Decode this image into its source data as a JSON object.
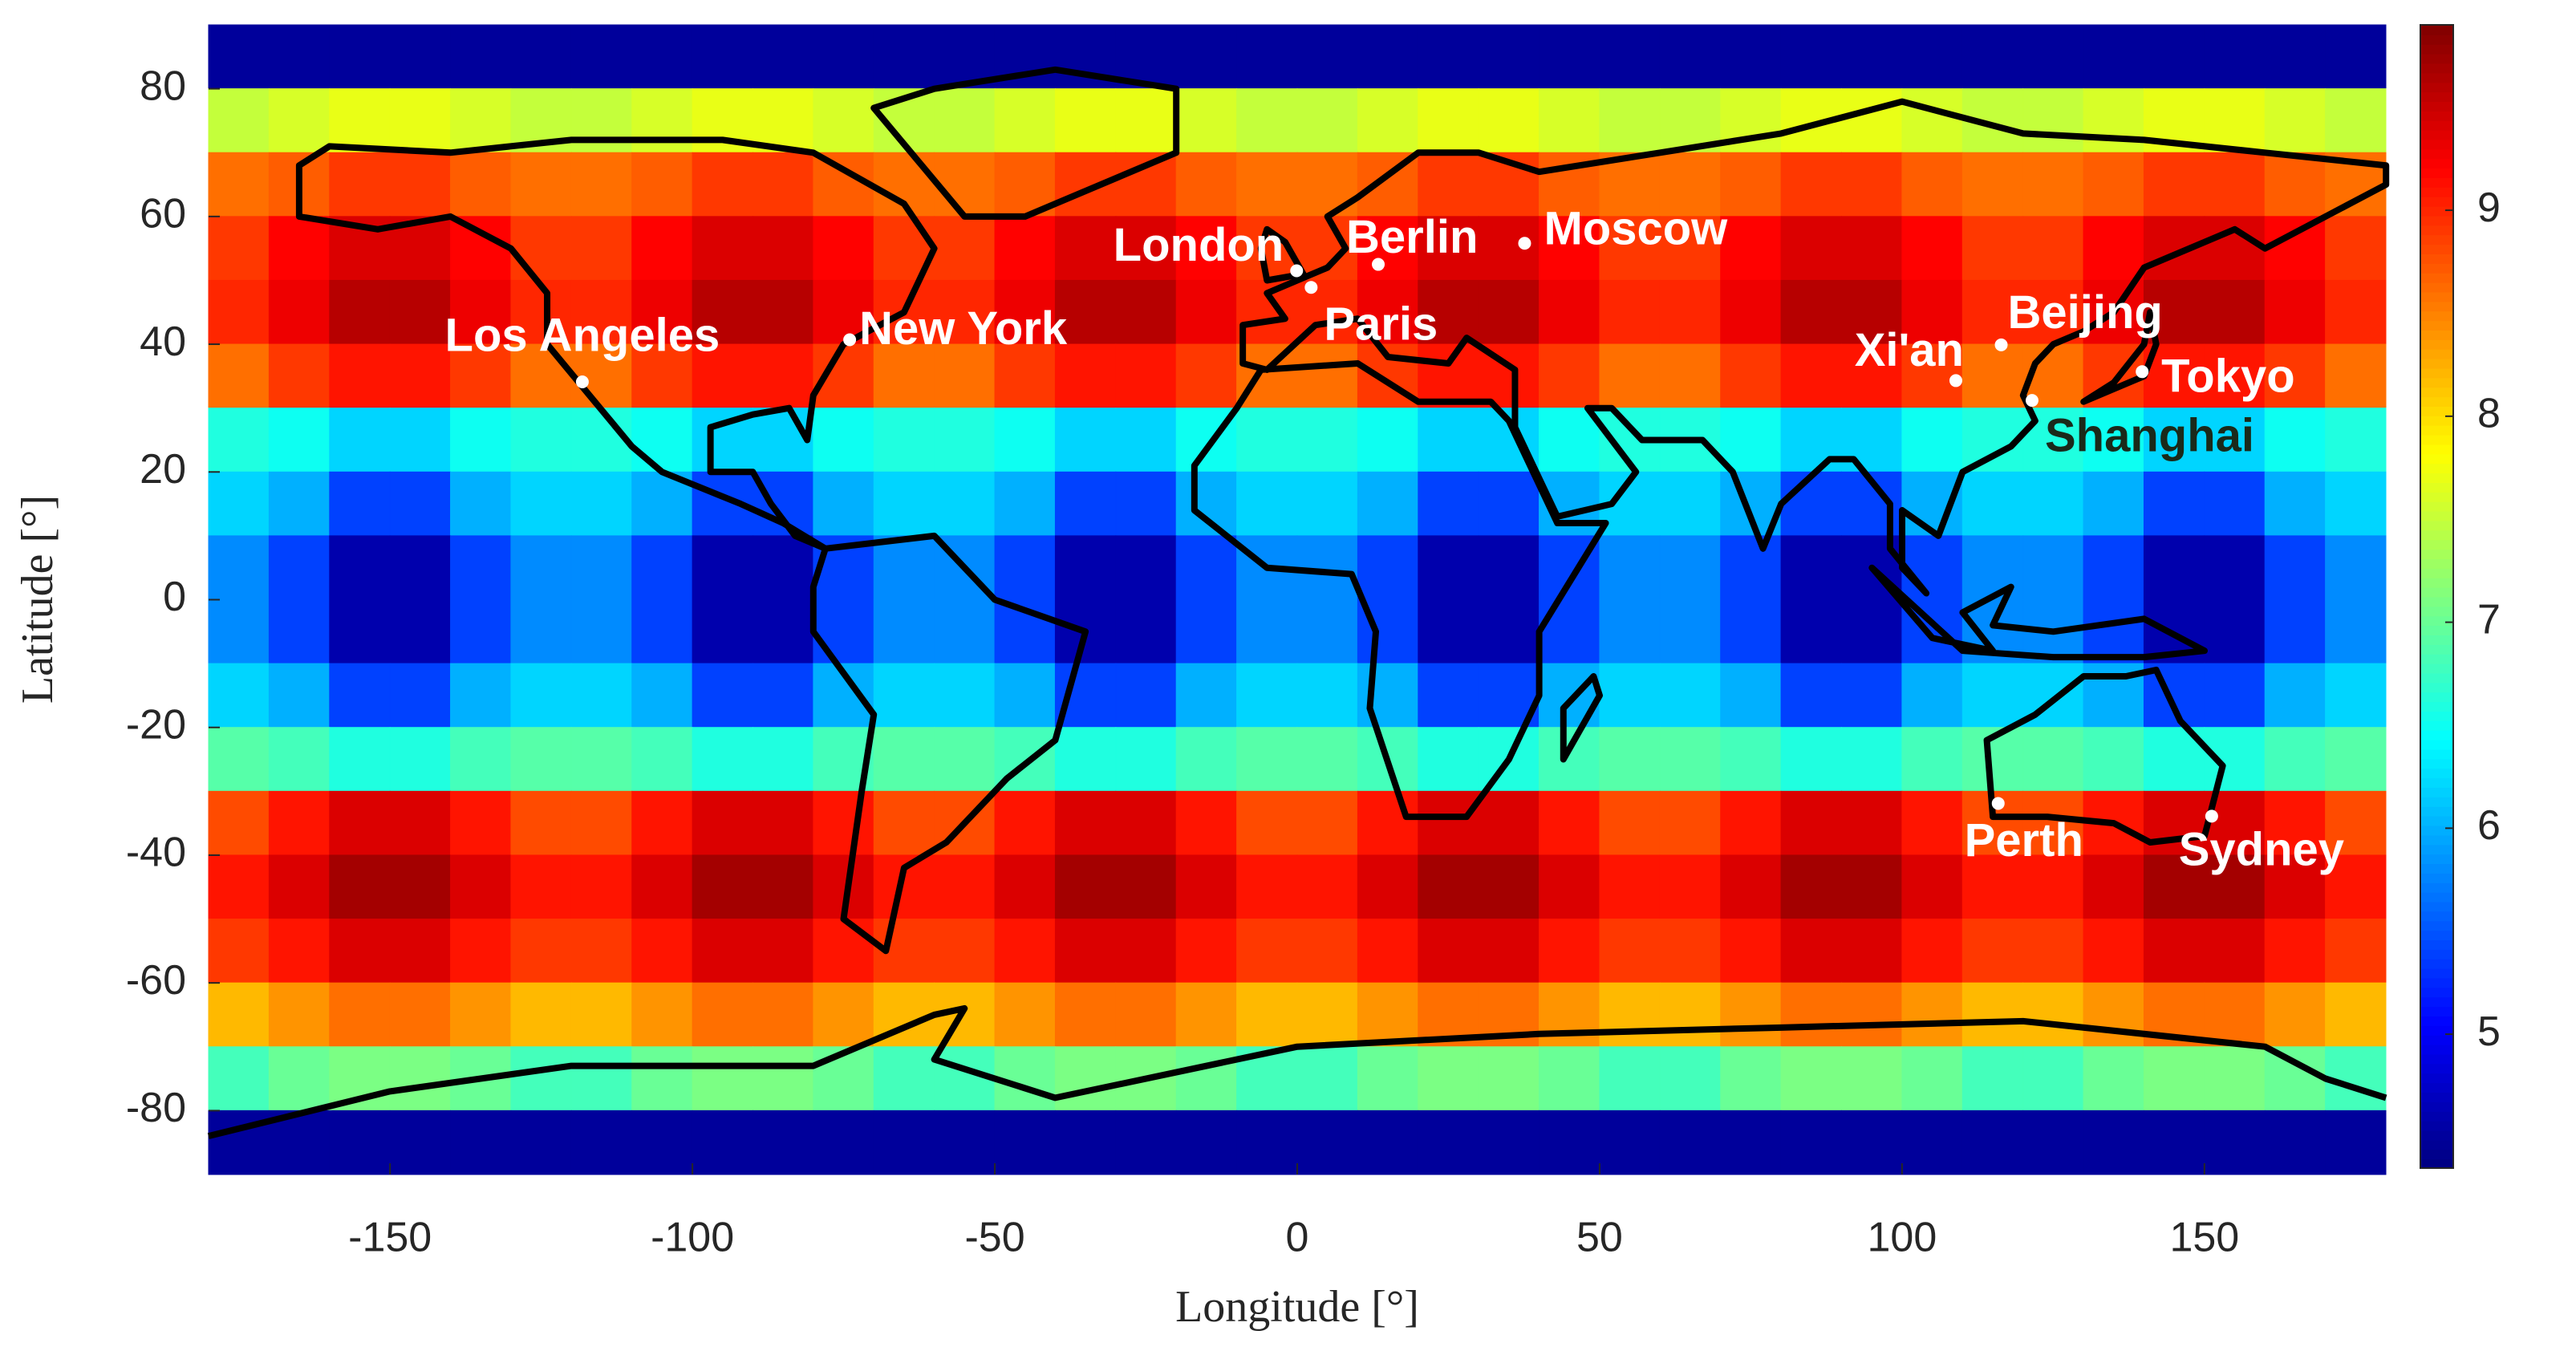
{
  "chart_data": {
    "type": "heatmap",
    "colormap": "jet",
    "x": [
      -175,
      -165,
      -155,
      -145,
      -135,
      -125,
      -115,
      -105,
      -95,
      -85,
      -75,
      -65,
      -55,
      -45,
      -35,
      -25,
      -15,
      -5,
      5,
      15,
      25,
      35,
      45,
      55,
      65,
      75,
      85,
      95,
      105,
      115,
      125,
      135,
      145,
      155,
      165,
      175
    ],
    "y": [
      85,
      75,
      65,
      55,
      45,
      35,
      25,
      15,
      5,
      -5,
      -15,
      -25,
      -35,
      -45,
      -55,
      -65,
      -75,
      -85
    ],
    "z": [
      [
        4.5,
        4.5,
        4.5,
        4.5,
        4.5,
        4.5,
        4.5,
        4.5,
        4.5,
        4.5,
        4.5,
        4.5,
        4.5,
        4.5,
        4.5,
        4.5,
        4.5,
        4.5,
        4.5,
        4.5,
        4.5,
        4.5,
        4.5,
        4.5,
        4.5,
        4.5,
        4.5,
        4.5,
        4.5,
        4.5,
        4.5,
        4.5,
        4.5,
        4.5,
        4.5,
        4.5
      ],
      [
        7.5,
        7.6,
        7.7,
        7.7,
        7.6,
        7.5,
        7.5,
        7.6,
        7.7,
        7.7,
        7.6,
        7.5,
        7.5,
        7.6,
        7.7,
        7.7,
        7.6,
        7.5,
        7.5,
        7.6,
        7.7,
        7.7,
        7.6,
        7.5,
        7.5,
        7.6,
        7.7,
        7.7,
        7.6,
        7.5,
        7.5,
        7.6,
        7.7,
        7.7,
        7.6,
        7.5
      ],
      [
        8.6,
        8.7,
        8.9,
        8.9,
        8.7,
        8.6,
        8.6,
        8.7,
        8.9,
        8.9,
        8.7,
        8.6,
        8.6,
        8.7,
        8.9,
        8.9,
        8.7,
        8.6,
        8.6,
        8.7,
        8.9,
        8.9,
        8.7,
        8.6,
        8.6,
        8.7,
        8.9,
        8.9,
        8.7,
        8.6,
        8.6,
        8.7,
        8.9,
        8.9,
        8.7,
        8.6
      ],
      [
        8.9,
        9.2,
        9.4,
        9.4,
        9.2,
        8.9,
        8.9,
        9.2,
        9.4,
        9.4,
        9.2,
        8.9,
        8.9,
        9.2,
        9.4,
        9.4,
        9.2,
        8.9,
        8.9,
        9.2,
        9.4,
        9.4,
        9.2,
        8.9,
        8.9,
        9.2,
        9.4,
        9.4,
        9.2,
        8.9,
        8.9,
        9.2,
        9.4,
        9.4,
        9.2,
        8.9
      ],
      [
        9.0,
        9.3,
        9.6,
        9.6,
        9.3,
        9.0,
        9.0,
        9.3,
        9.6,
        9.6,
        9.3,
        9.0,
        9.0,
        9.3,
        9.6,
        9.6,
        9.3,
        9.0,
        9.0,
        9.3,
        9.6,
        9.6,
        9.3,
        9.0,
        9.0,
        9.3,
        9.6,
        9.6,
        9.3,
        9.0,
        9.0,
        9.3,
        9.6,
        9.6,
        9.3,
        9.0
      ],
      [
        8.6,
        8.9,
        9.1,
        9.1,
        8.9,
        8.6,
        8.6,
        8.9,
        9.1,
        9.1,
        8.9,
        8.6,
        8.6,
        8.9,
        9.1,
        9.1,
        8.9,
        8.6,
        8.6,
        8.9,
        9.1,
        9.1,
        8.9,
        8.6,
        8.6,
        8.9,
        9.1,
        9.1,
        8.9,
        8.6,
        8.6,
        8.9,
        9.1,
        9.1,
        8.9,
        8.6
      ],
      [
        6.6,
        6.5,
        6.2,
        6.2,
        6.5,
        6.6,
        6.6,
        6.5,
        6.2,
        6.2,
        6.5,
        6.6,
        6.6,
        6.5,
        6.2,
        6.2,
        6.5,
        6.6,
        6.6,
        6.5,
        6.2,
        6.2,
        6.5,
        6.6,
        6.6,
        6.5,
        6.2,
        6.2,
        6.5,
        6.6,
        6.6,
        6.5,
        6.2,
        6.2,
        6.5,
        6.6
      ],
      [
        6.2,
        6.0,
        5.4,
        5.4,
        6.0,
        6.2,
        6.2,
        6.0,
        5.4,
        5.4,
        6.0,
        6.2,
        6.2,
        6.0,
        5.4,
        5.4,
        6.0,
        6.2,
        6.2,
        6.0,
        5.4,
        5.4,
        6.0,
        6.2,
        6.2,
        6.0,
        5.4,
        5.4,
        6.0,
        6.2,
        6.2,
        6.0,
        5.4,
        5.4,
        6.0,
        6.2
      ],
      [
        5.8,
        5.4,
        4.6,
        4.6,
        5.4,
        5.8,
        5.8,
        5.4,
        4.6,
        4.6,
        5.4,
        5.8,
        5.8,
        5.4,
        4.6,
        4.6,
        5.4,
        5.8,
        5.8,
        5.4,
        4.6,
        4.6,
        5.4,
        5.8,
        5.8,
        5.4,
        4.6,
        4.6,
        5.4,
        5.8,
        5.8,
        5.4,
        4.6,
        4.6,
        5.4,
        5.8
      ],
      [
        5.8,
        5.4,
        4.6,
        4.6,
        5.4,
        5.8,
        5.8,
        5.4,
        4.6,
        4.6,
        5.4,
        5.8,
        5.8,
        5.4,
        4.6,
        4.6,
        5.4,
        5.8,
        5.8,
        5.4,
        4.6,
        4.6,
        5.4,
        5.8,
        5.8,
        5.4,
        4.6,
        4.6,
        5.4,
        5.8,
        5.8,
        5.4,
        4.6,
        4.6,
        5.4,
        5.8
      ],
      [
        6.2,
        6.0,
        5.4,
        5.4,
        6.0,
        6.2,
        6.2,
        6.0,
        5.4,
        5.4,
        6.0,
        6.2,
        6.2,
        6.0,
        5.4,
        5.4,
        6.0,
        6.2,
        6.2,
        6.0,
        5.4,
        5.4,
        6.0,
        6.2,
        6.2,
        6.0,
        5.4,
        5.4,
        6.0,
        6.2,
        6.2,
        6.0,
        5.4,
        5.4,
        6.0,
        6.2
      ],
      [
        6.9,
        6.8,
        6.6,
        6.6,
        6.8,
        6.9,
        6.9,
        6.8,
        6.6,
        6.6,
        6.8,
        6.9,
        6.9,
        6.8,
        6.6,
        6.6,
        6.8,
        6.9,
        6.9,
        6.8,
        6.6,
        6.6,
        6.8,
        6.9,
        6.9,
        6.8,
        6.6,
        6.6,
        6.8,
        6.9,
        6.9,
        6.8,
        6.6,
        6.6,
        6.8,
        6.9
      ],
      [
        8.8,
        9.1,
        9.4,
        9.4,
        9.1,
        8.8,
        8.8,
        9.1,
        9.4,
        9.4,
        9.1,
        8.8,
        8.8,
        9.1,
        9.4,
        9.4,
        9.1,
        8.8,
        8.8,
        9.1,
        9.4,
        9.4,
        9.1,
        8.8,
        8.8,
        9.1,
        9.4,
        9.4,
        9.1,
        8.8,
        8.8,
        9.1,
        9.4,
        9.4,
        9.1,
        8.8
      ],
      [
        9.1,
        9.4,
        9.7,
        9.7,
        9.4,
        9.1,
        9.1,
        9.4,
        9.7,
        9.7,
        9.4,
        9.1,
        9.1,
        9.4,
        9.7,
        9.7,
        9.4,
        9.1,
        9.1,
        9.4,
        9.7,
        9.7,
        9.4,
        9.1,
        9.1,
        9.4,
        9.7,
        9.7,
        9.4,
        9.1,
        9.1,
        9.4,
        9.7,
        9.7,
        9.4,
        9.1
      ],
      [
        8.9,
        9.1,
        9.4,
        9.4,
        9.1,
        8.9,
        8.9,
        9.1,
        9.4,
        9.4,
        9.1,
        8.9,
        8.9,
        9.1,
        9.4,
        9.4,
        9.1,
        8.9,
        8.9,
        9.1,
        9.4,
        9.4,
        9.1,
        8.9,
        8.9,
        9.1,
        9.4,
        9.4,
        9.1,
        8.9,
        8.9,
        9.1,
        9.4,
        9.4,
        9.1,
        8.9
      ],
      [
        8.2,
        8.4,
        8.6,
        8.6,
        8.4,
        8.2,
        8.2,
        8.4,
        8.6,
        8.6,
        8.4,
        8.2,
        8.2,
        8.4,
        8.6,
        8.6,
        8.4,
        8.2,
        8.2,
        8.4,
        8.6,
        8.6,
        8.4,
        8.2,
        8.2,
        8.4,
        8.6,
        8.6,
        8.4,
        8.2,
        8.2,
        8.4,
        8.6,
        8.6,
        8.4,
        8.2
      ],
      [
        6.8,
        7.0,
        7.1,
        7.1,
        7.0,
        6.8,
        6.8,
        7.0,
        7.1,
        7.1,
        7.0,
        6.8,
        6.8,
        7.0,
        7.1,
        7.1,
        7.0,
        6.8,
        6.8,
        7.0,
        7.1,
        7.1,
        7.0,
        6.8,
        6.8,
        7.0,
        7.1,
        7.1,
        7.0,
        6.8,
        6.8,
        7.0,
        7.1,
        7.1,
        7.0,
        6.8
      ],
      [
        4.5,
        4.5,
        4.5,
        4.5,
        4.5,
        4.5,
        4.5,
        4.5,
        4.5,
        4.5,
        4.5,
        4.5,
        4.5,
        4.5,
        4.5,
        4.5,
        4.5,
        4.5,
        4.5,
        4.5,
        4.5,
        4.5,
        4.5,
        4.5,
        4.5,
        4.5,
        4.5,
        4.5,
        4.5,
        4.5,
        4.5,
        4.5,
        4.5,
        4.5,
        4.5,
        4.5
      ]
    ],
    "xlim": [
      -180,
      180
    ],
    "ylim": [
      -90,
      90
    ],
    "xticks": [
      -150,
      -100,
      -50,
      0,
      50,
      100,
      150
    ],
    "yticks": [
      -80,
      -60,
      -40,
      -20,
      0,
      20,
      40,
      60,
      80
    ],
    "clim": [
      4.35,
      9.9
    ],
    "cticks": [
      5,
      6,
      7,
      8,
      9
    ],
    "x_label": "Longitude [°]",
    "y_label": "Latitude [°]",
    "cities": [
      {
        "name": "London",
        "lon": -0.1,
        "lat": 51.5,
        "color": "#ffffff"
      },
      {
        "name": "Paris",
        "lon": 2.3,
        "lat": 48.9,
        "color": "#ffffff"
      },
      {
        "name": "Berlin",
        "lon": 13.4,
        "lat": 52.5,
        "color": "#ffffff"
      },
      {
        "name": "Moscow",
        "lon": 37.6,
        "lat": 55.8,
        "color": "#ffffff"
      },
      {
        "name": "Los Angeles",
        "lon": -118.2,
        "lat": 34.1,
        "color": "#ffffff"
      },
      {
        "name": "New York",
        "lon": -74,
        "lat": 40.7,
        "color": "#ffffff"
      },
      {
        "name": "Xi'an",
        "lon": 108.9,
        "lat": 34.3,
        "color": "#ffffff"
      },
      {
        "name": "Beijing",
        "lon": 116.4,
        "lat": 39.9,
        "color": "#ffffff"
      },
      {
        "name": "Tokyo",
        "lon": 139.7,
        "lat": 35.7,
        "color": "#ffffff"
      },
      {
        "name": "Shanghai",
        "lon": 121.5,
        "lat": 31.2,
        "color": "#1a2a1a"
      },
      {
        "name": "Perth",
        "lon": 115.9,
        "lat": -31.9,
        "color": "#ffffff"
      },
      {
        "name": "Sydney",
        "lon": 151.2,
        "lat": -33.9,
        "color": "#ffffff"
      }
    ]
  }
}
